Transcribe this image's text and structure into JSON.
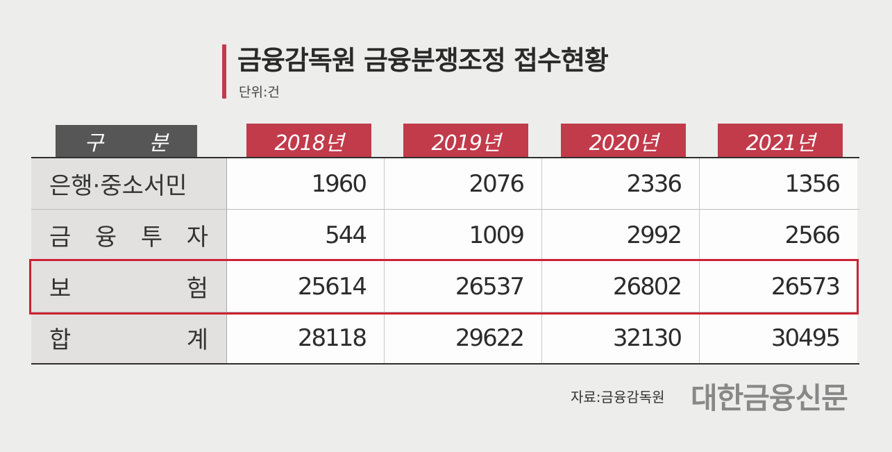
{
  "title": "금융감독원 금융분쟁조정 접수현황",
  "unit": "단위:건",
  "header": {
    "category": "구 분",
    "years": [
      "2018년",
      "2019년",
      "2020년",
      "2021년"
    ]
  },
  "rows": [
    {
      "label_chars": [
        "은행·중소서민"
      ],
      "values": [
        "1960",
        "2076",
        "2336",
        "1356"
      ]
    },
    {
      "label_chars": [
        "금",
        "융",
        "투",
        "자"
      ],
      "values": [
        "544",
        "1009",
        "2992",
        "2566"
      ]
    },
    {
      "label_chars": [
        "보",
        "험"
      ],
      "values": [
        "25614",
        "26537",
        "26802",
        "26573"
      ]
    },
    {
      "label_chars": [
        "합",
        "계"
      ],
      "values": [
        "28118",
        "29622",
        "32130",
        "30495"
      ]
    }
  ],
  "source": "자료:금융감독원",
  "logo": "대한금융신문",
  "colors": {
    "accent": "#c13b4b",
    "header_dark": "#555655",
    "highlight": "#cc2233"
  }
}
